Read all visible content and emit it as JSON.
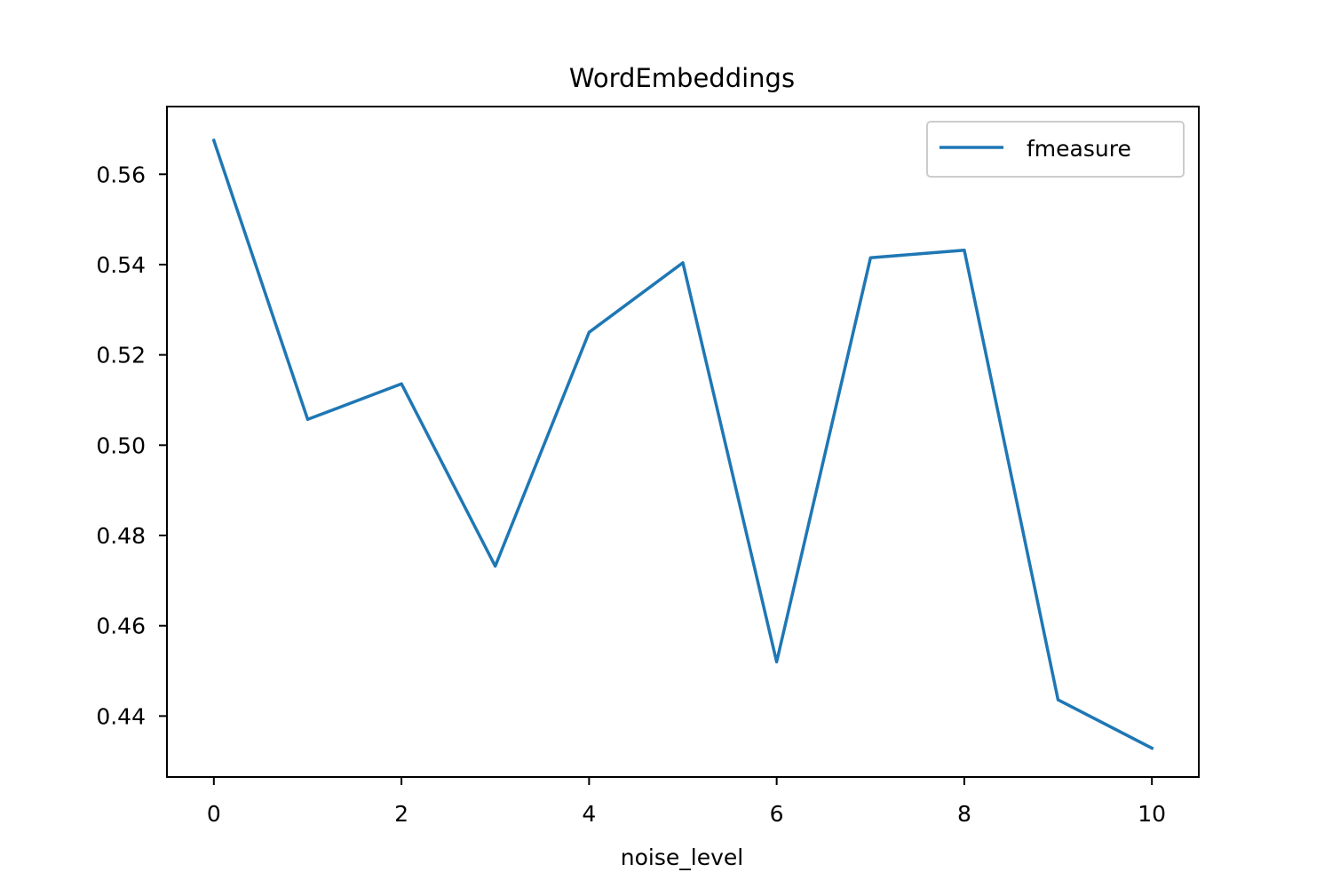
{
  "chart_data": {
    "type": "line",
    "title": "WordEmbeddings",
    "xlabel": "noise_level",
    "ylabel": "",
    "x": [
      0,
      1,
      2,
      3,
      4,
      5,
      6,
      7,
      8,
      9,
      10
    ],
    "series": [
      {
        "name": "fmeasure",
        "color": "#1f77b4",
        "values": [
          0.5675,
          0.5057,
          0.5136,
          0.4732,
          0.525,
          0.5404,
          0.452,
          0.5415,
          0.5432,
          0.4436,
          0.4329
        ]
      }
    ],
    "xlim": [
      -0.5,
      10.5
    ],
    "ylim": [
      0.4265,
      0.575
    ],
    "xticks": [
      0,
      2,
      4,
      6,
      8,
      10
    ],
    "xtick_labels": [
      "0",
      "2",
      "4",
      "6",
      "8",
      "10"
    ],
    "yticks": [
      0.44,
      0.46,
      0.48,
      0.5,
      0.52,
      0.54,
      0.56
    ],
    "ytick_labels": [
      "0.44",
      "0.46",
      "0.48",
      "0.50",
      "0.52",
      "0.54",
      "0.56"
    ],
    "grid": false,
    "legend_position": "top-right"
  }
}
